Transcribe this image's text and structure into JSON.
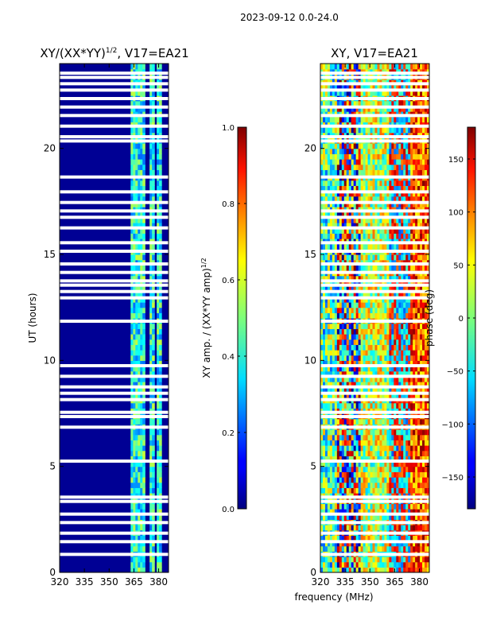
{
  "chart_data": [
    {
      "type": "heatmap",
      "title": "XY/(XX*YY)",
      "title_sup": "1/2",
      "title_suffix": ", V17=EA21",
      "xlabel": "",
      "ylabel": "UT (hours)",
      "xlim": [
        320,
        386
      ],
      "ylim": [
        0,
        24
      ],
      "xticks": [
        320,
        335,
        350,
        365,
        380
      ],
      "yticks": [
        0,
        5,
        10,
        15,
        20
      ],
      "colormap": "jet",
      "colorbar": {
        "label": "XY amp. / (XX*YY amp)",
        "label_sup": "1/2",
        "range": [
          0.0,
          1.0
        ],
        "ticks": [
          "0.0",
          "0.2",
          "0.4",
          "0.6",
          "0.8",
          "1.0"
        ]
      },
      "bright_bands_mhz": [
        [
          363,
          367
        ],
        [
          368,
          372
        ],
        [
          374,
          377
        ],
        [
          379,
          382
        ]
      ],
      "typical_value_band": 0.4,
      "typical_value_background": 0.02
    },
    {
      "type": "heatmap",
      "title": "XY, V17=EA21",
      "xlabel": "frequency (MHz)",
      "ylabel": "",
      "xlim": [
        320,
        386
      ],
      "ylim": [
        0,
        24
      ],
      "xticks": [
        320,
        335,
        350,
        365,
        380
      ],
      "yticks": [
        0,
        5,
        10,
        15,
        20
      ],
      "colormap": "jet",
      "colorbar": {
        "label": "phase (deg)",
        "range": [
          -180,
          180
        ],
        "ticks": [
          "150",
          "100",
          "50",
          "0",
          "−50",
          "−100",
          "−150"
        ]
      }
    }
  ],
  "suptitle": "2023-09-12 0.0-24.0",
  "data_gaps_hours": [
    0.85,
    1.45,
    1.85,
    2.35,
    2.75,
    3.35,
    3.55,
    5.25,
    6.85,
    7.35,
    7.55,
    8.15,
    8.45,
    8.75,
    9.25,
    9.75,
    11.85,
    12.95,
    13.25,
    13.55,
    13.75,
    14.15,
    14.55,
    15.15,
    15.55,
    16.25,
    16.75,
    17.05,
    17.45,
    17.95,
    18.65,
    20.35,
    20.55,
    21.05,
    21.55,
    21.95,
    22.35,
    22.75,
    23.05,
    23.35,
    23.55
  ]
}
